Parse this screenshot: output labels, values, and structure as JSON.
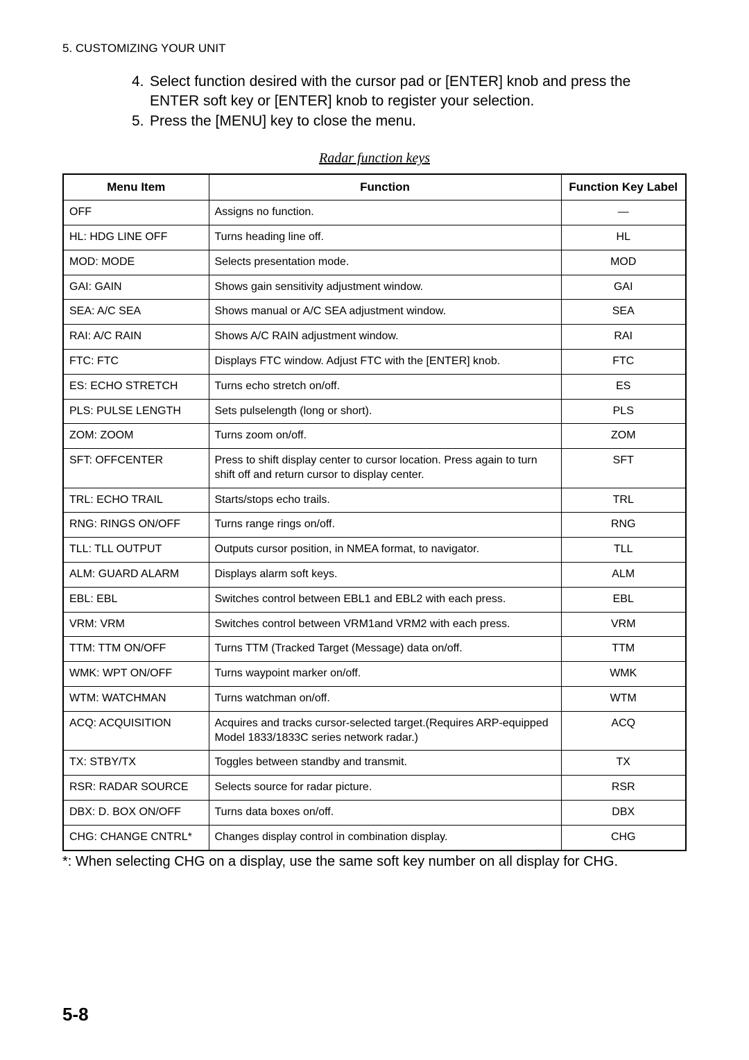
{
  "header": "5. CUSTOMIZING YOUR UNIT",
  "instructions": [
    {
      "num": "4.",
      "text": "Select function desired with the cursor pad or [ENTER] knob and press the ENTER soft key or [ENTER] knob to register your selection."
    },
    {
      "num": "5.",
      "text": "Press the [MENU] key to close the menu."
    }
  ],
  "table_title": "Radar function keys",
  "columns": [
    "Menu Item",
    "Function",
    "Function Key Label"
  ],
  "rows": [
    {
      "menu": "OFF",
      "func": "Assigns no function.",
      "label": "—"
    },
    {
      "menu": "HL: HDG LINE OFF",
      "func": "Turns heading line off.",
      "label": "HL"
    },
    {
      "menu": "MOD: MODE",
      "func": "Selects presentation mode.",
      "label": "MOD"
    },
    {
      "menu": "GAI: GAIN",
      "func": "Shows gain sensitivity adjustment window.",
      "label": "GAI"
    },
    {
      "menu": "SEA: A/C SEA",
      "func": "Shows manual or A/C SEA adjustment window.",
      "label": "SEA"
    },
    {
      "menu": "RAI: A/C RAIN",
      "func": "Shows A/C RAIN adjustment window.",
      "label": "RAI"
    },
    {
      "menu": "FTC: FTC",
      "func": "Displays FTC window. Adjust FTC with the [ENTER] knob.",
      "label": "FTC"
    },
    {
      "menu": "ES: ECHO STRETCH",
      "func": "Turns echo stretch on/off.",
      "label": "ES"
    },
    {
      "menu": "PLS: PULSE LENGTH",
      "func": "Sets pulselength (long or short).",
      "label": "PLS"
    },
    {
      "menu": "ZOM: ZOOM",
      "func": "Turns zoom on/off.",
      "label": "ZOM"
    },
    {
      "menu": "SFT: OFFCENTER",
      "func": "Press to shift display center to cursor location. Press again to turn shift off and return cursor to display center.",
      "label": "SFT"
    },
    {
      "menu": "TRL: ECHO TRAIL",
      "func": "Starts/stops echo trails.",
      "label": "TRL"
    },
    {
      "menu": "RNG: RINGS ON/OFF",
      "func": "Turns range rings on/off.",
      "label": "RNG"
    },
    {
      "menu": "TLL: TLL OUTPUT",
      "func": "Outputs cursor position, in NMEA format, to navigator.",
      "label": "TLL"
    },
    {
      "menu": "ALM: GUARD ALARM",
      "func": "Displays alarm soft keys.",
      "label": "ALM"
    },
    {
      "menu": "EBL: EBL",
      "func": "Switches control between EBL1 and EBL2 with each press.",
      "label": "EBL"
    },
    {
      "menu": "VRM: VRM",
      "func": "Switches control between VRM1and VRM2 with each press.",
      "label": "VRM"
    },
    {
      "menu": "TTM: TTM ON/OFF",
      "func": "Turns TTM (Tracked Target (Message) data on/off.",
      "label": "TTM"
    },
    {
      "menu": "WMK: WPT ON/OFF",
      "func": "Turns waypoint marker on/off.",
      "label": "WMK"
    },
    {
      "menu": "WTM: WATCHMAN",
      "func": "Turns watchman on/off.",
      "label": "WTM"
    },
    {
      "menu": "ACQ: ACQUISITION",
      "func": "Acquires and tracks cursor-selected target.(Requires ARP-equipped Model 1833/1833C series network radar.)",
      "label": "ACQ"
    },
    {
      "menu": "TX: STBY/TX",
      "func": "Toggles between standby and transmit.",
      "label": "TX"
    },
    {
      "menu": "RSR: RADAR SOURCE",
      "func": "Selects source for radar picture.",
      "label": "RSR"
    },
    {
      "menu": "DBX: D. BOX ON/OFF",
      "func": "Turns data boxes on/off.",
      "label": "DBX"
    },
    {
      "menu": "CHG: CHANGE CNTRL*",
      "func": "Changes display control in combination display.",
      "label": "CHG"
    }
  ],
  "footnote": "*: When selecting CHG on a display, use the same soft key number on all display for CHG.",
  "page_number": "5-8"
}
